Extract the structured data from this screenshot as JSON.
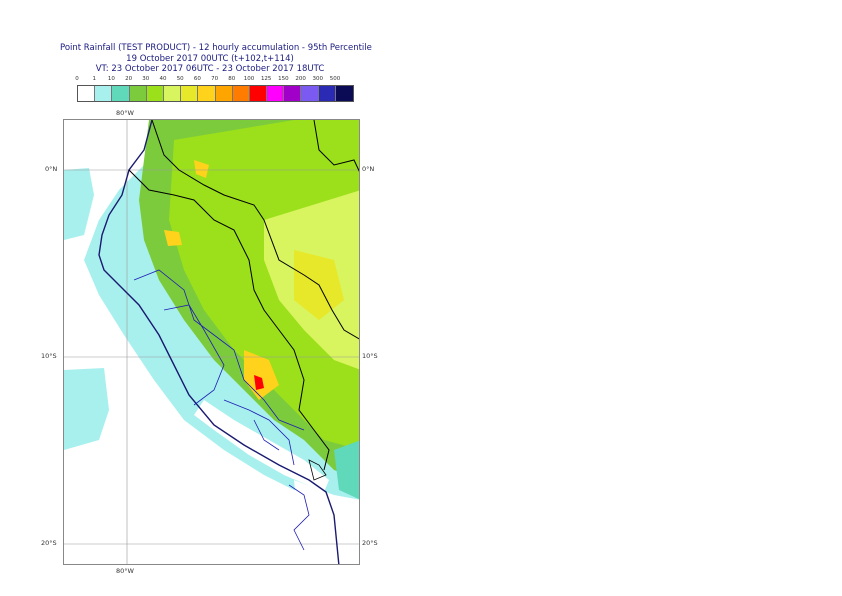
{
  "title": {
    "line1": "Point Rainfall (TEST PRODUCT) - 12 hourly accumulation - 95th Percentile",
    "line2": "19 October 2017 00UTC (t+102,t+114)",
    "line3": "VT: 23 October 2017 06UTC - 23 October 2017 18UTC"
  },
  "legend": {
    "thresholds": [
      "0",
      "1",
      "10",
      "20",
      "30",
      "40",
      "50",
      "60",
      "70",
      "80",
      "100",
      "125",
      "150",
      "200",
      "300",
      "500"
    ],
    "colors": [
      "#ffffff",
      "#a8f0ee",
      "#5fd9b9",
      "#7ccb3c",
      "#9be01a",
      "#d8f45e",
      "#e8e82a",
      "#ffd21c",
      "#ffa500",
      "#ff7c00",
      "#ff0000",
      "#ff00ff",
      "#a000c8",
      "#7a5af0",
      "#2a2ab4",
      "#0a0a55"
    ]
  },
  "map": {
    "lat_labels": [
      "0°N",
      "10°S",
      "20°S"
    ],
    "lon_label": "80°W"
  }
}
